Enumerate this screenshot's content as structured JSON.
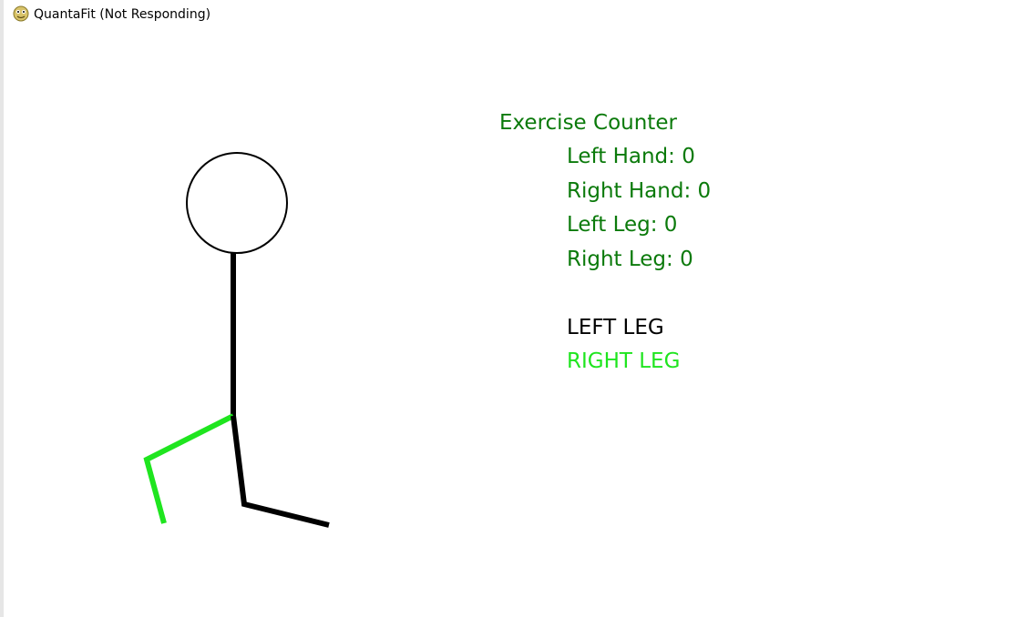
{
  "window": {
    "title": "QuantaFit (Not Responding)",
    "icon": "python-icon"
  },
  "counter": {
    "title": "Exercise Counter",
    "left_hand": "Left Hand: 0",
    "right_hand": "Right Hand: 0",
    "left_leg": "Left Leg: 0",
    "right_leg": "Right Leg: 0"
  },
  "status": {
    "left_leg_label": "LEFT LEG",
    "right_leg_label": "RIGHT LEG"
  },
  "colors": {
    "counter_text": "#0b7a0b",
    "active_limb": "#1fe51f",
    "inactive_limb": "#000000",
    "background": "#ffffff"
  }
}
